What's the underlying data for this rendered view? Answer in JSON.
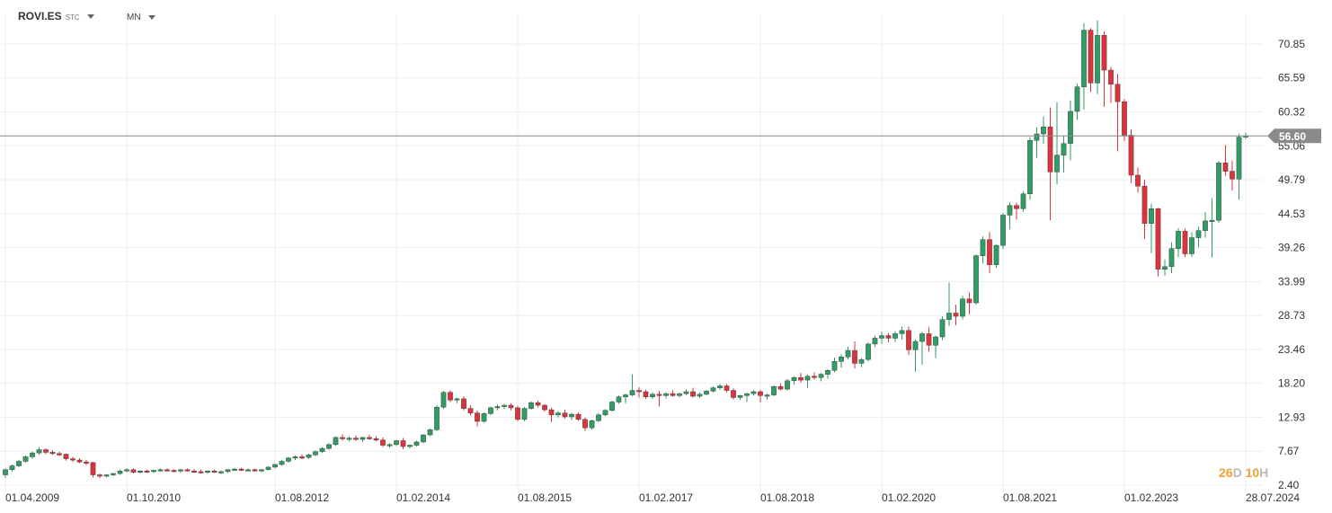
{
  "toolbar": {
    "symbol": "ROVI.ES",
    "symbol_tag": "STC",
    "timeframe": "MN",
    "symbol_dropdown_icon": "caret-down-icon",
    "timeframe_dropdown_icon": "caret-down-icon"
  },
  "countdown": {
    "days": "26",
    "days_unit": "D",
    "hours": "10",
    "hours_unit": "H"
  },
  "chart_data": {
    "type": "candlestick",
    "y_ticks": [
      "70.85",
      "65.59",
      "60.32",
      "55.06",
      "49.79",
      "44.53",
      "39.26",
      "33.99",
      "28.73",
      "23.46",
      "18.20",
      "12.93",
      "7.67",
      "2.40"
    ],
    "y_tick_values": [
      70.85,
      65.59,
      60.32,
      55.06,
      49.79,
      44.53,
      39.26,
      33.99,
      28.73,
      23.46,
      18.2,
      12.93,
      7.67,
      2.4
    ],
    "x_ticks": [
      "01.04.2009",
      "01.10.2010",
      "01.08.2012",
      "01.02.2014",
      "01.08.2015",
      "01.02.2017",
      "01.08.2018",
      "01.02.2020",
      "01.08.2021",
      "01.02.2023",
      "28.07.2024"
    ],
    "x_tick_month_index": [
      0,
      18,
      40,
      58,
      76,
      94,
      112,
      130,
      148,
      166,
      184
    ],
    "ylim": [
      2.4,
      74.5
    ],
    "grid": true,
    "current_price": 56.6,
    "current_price_label": "56.60",
    "colors": {
      "up": "#2e9e62",
      "down": "#e0323a",
      "price_line": "#888888",
      "price_label_bg": "#8a8a8a",
      "grid": "#eeeeee"
    },
    "candles": [
      [
        4.0,
        5.0,
        3.5,
        4.8
      ],
      [
        4.8,
        5.6,
        4.5,
        5.4
      ],
      [
        5.4,
        6.3,
        5.2,
        6.1
      ],
      [
        6.1,
        7.0,
        5.9,
        6.8
      ],
      [
        6.8,
        7.6,
        6.5,
        7.4
      ],
      [
        7.4,
        8.3,
        7.1,
        7.9
      ],
      [
        7.9,
        8.1,
        7.2,
        7.5
      ],
      [
        7.5,
        7.8,
        7.1,
        7.3
      ],
      [
        7.3,
        7.6,
        6.9,
        7.2
      ],
      [
        7.2,
        7.3,
        6.2,
        6.5
      ],
      [
        6.5,
        6.8,
        6.0,
        6.3
      ],
      [
        6.3,
        6.6,
        5.8,
        6.0
      ],
      [
        6.0,
        6.3,
        5.5,
        5.9
      ],
      [
        5.9,
        6.0,
        3.6,
        4.0
      ],
      [
        4.0,
        4.2,
        3.5,
        3.8
      ],
      [
        3.8,
        4.1,
        3.6,
        4.0
      ],
      [
        4.0,
        4.3,
        3.8,
        4.2
      ],
      [
        4.2,
        4.8,
        4.0,
        4.6
      ],
      [
        4.6,
        5.0,
        4.4,
        4.8
      ],
      [
        4.8,
        5.0,
        4.2,
        4.4
      ],
      [
        4.4,
        4.7,
        4.2,
        4.6
      ],
      [
        4.6,
        4.8,
        4.3,
        4.5
      ],
      [
        4.5,
        4.8,
        4.3,
        4.7
      ],
      [
        4.7,
        5.0,
        4.5,
        4.8
      ],
      [
        4.8,
        5.0,
        4.5,
        4.7
      ],
      [
        4.7,
        4.9,
        4.4,
        4.6
      ],
      [
        4.6,
        4.9,
        4.3,
        4.8
      ],
      [
        4.8,
        5.0,
        4.5,
        4.6
      ],
      [
        4.6,
        4.9,
        4.3,
        4.5
      ],
      [
        4.5,
        4.8,
        4.2,
        4.4
      ],
      [
        4.4,
        4.7,
        4.2,
        4.6
      ],
      [
        4.6,
        4.8,
        4.3,
        4.4
      ],
      [
        4.4,
        4.7,
        4.1,
        4.5
      ],
      [
        4.5,
        4.9,
        4.3,
        4.8
      ],
      [
        4.8,
        5.1,
        4.6,
        4.9
      ],
      [
        4.9,
        5.1,
        4.6,
        4.7
      ],
      [
        4.7,
        5.0,
        4.5,
        4.8
      ],
      [
        4.8,
        5.0,
        4.5,
        4.6
      ],
      [
        4.6,
        4.9,
        4.4,
        4.8
      ],
      [
        4.8,
        5.3,
        4.7,
        5.2
      ],
      [
        5.2,
        5.8,
        5.0,
        5.6
      ],
      [
        5.6,
        6.3,
        5.4,
        6.1
      ],
      [
        6.1,
        6.8,
        5.9,
        6.6
      ],
      [
        6.6,
        7.0,
        6.3,
        6.8
      ],
      [
        6.8,
        7.2,
        6.4,
        6.7
      ],
      [
        6.7,
        7.3,
        6.5,
        7.1
      ],
      [
        7.1,
        7.8,
        6.9,
        7.6
      ],
      [
        7.6,
        8.3,
        7.4,
        8.1
      ],
      [
        8.1,
        8.9,
        7.9,
        8.7
      ],
      [
        8.7,
        10.0,
        8.5,
        9.8
      ],
      [
        9.8,
        10.3,
        9.3,
        9.6
      ],
      [
        9.6,
        10.0,
        9.2,
        9.7
      ],
      [
        9.7,
        10.1,
        9.3,
        9.5
      ],
      [
        9.5,
        9.9,
        9.1,
        9.8
      ],
      [
        9.8,
        10.2,
        9.4,
        9.6
      ],
      [
        9.6,
        10.0,
        9.2,
        9.4
      ],
      [
        9.4,
        9.8,
        8.3,
        8.6
      ],
      [
        8.6,
        8.9,
        8.2,
        8.7
      ],
      [
        8.7,
        9.4,
        8.5,
        9.3
      ],
      [
        9.3,
        9.7,
        8.0,
        8.4
      ],
      [
        8.4,
        8.7,
        8.1,
        8.6
      ],
      [
        8.6,
        9.3,
        8.4,
        9.1
      ],
      [
        9.1,
        10.3,
        8.9,
        10.2
      ],
      [
        10.2,
        11.2,
        10.0,
        11.0
      ],
      [
        11.0,
        14.8,
        10.8,
        14.5
      ],
      [
        14.5,
        17.0,
        14.2,
        16.8
      ],
      [
        16.8,
        17.1,
        15.3,
        15.6
      ],
      [
        15.6,
        16.0,
        15.1,
        15.8
      ],
      [
        15.8,
        16.2,
        14.0,
        14.3
      ],
      [
        14.3,
        14.8,
        13.2,
        13.6
      ],
      [
        13.6,
        14.0,
        11.5,
        12.3
      ],
      [
        12.3,
        13.7,
        12.1,
        13.5
      ],
      [
        13.5,
        14.6,
        13.3,
        14.4
      ],
      [
        14.4,
        14.9,
        14.0,
        14.6
      ],
      [
        14.6,
        15.0,
        14.2,
        14.8
      ],
      [
        14.8,
        15.1,
        14.0,
        14.4
      ],
      [
        14.4,
        14.7,
        12.3,
        12.6
      ],
      [
        12.6,
        14.5,
        12.3,
        14.3
      ],
      [
        14.3,
        15.4,
        14.1,
        15.2
      ],
      [
        15.2,
        15.5,
        14.5,
        14.8
      ],
      [
        14.8,
        15.0,
        13.8,
        14.1
      ],
      [
        14.1,
        14.4,
        12.2,
        13.3
      ],
      [
        13.3,
        13.9,
        12.9,
        13.6
      ],
      [
        13.6,
        14.1,
        12.7,
        13.0
      ],
      [
        13.0,
        13.6,
        12.5,
        13.4
      ],
      [
        13.4,
        13.7,
        12.4,
        12.6
      ],
      [
        12.6,
        12.9,
        10.8,
        11.3
      ],
      [
        11.3,
        12.6,
        11.0,
        12.4
      ],
      [
        12.4,
        13.6,
        12.2,
        13.3
      ],
      [
        13.3,
        14.2,
        13.1,
        14.0
      ],
      [
        14.0,
        15.5,
        13.8,
        15.3
      ],
      [
        15.3,
        16.3,
        15.0,
        16.1
      ],
      [
        16.1,
        16.6,
        15.1,
        16.4
      ],
      [
        16.4,
        19.6,
        16.2,
        17.1
      ],
      [
        17.1,
        17.6,
        16.0,
        16.9
      ],
      [
        16.9,
        17.2,
        15.8,
        16.1
      ],
      [
        16.1,
        16.8,
        15.8,
        16.5
      ],
      [
        16.5,
        17.0,
        14.6,
        16.3
      ],
      [
        16.3,
        16.8,
        15.8,
        16.6
      ],
      [
        16.6,
        17.1,
        16.1,
        16.3
      ],
      [
        16.3,
        16.7,
        16.0,
        16.6
      ],
      [
        16.6,
        17.3,
        16.4,
        16.9
      ],
      [
        16.9,
        17.5,
        16.0,
        16.2
      ],
      [
        16.2,
        16.8,
        15.9,
        16.5
      ],
      [
        16.5,
        17.2,
        16.3,
        17.0
      ],
      [
        17.0,
        17.7,
        16.8,
        17.5
      ],
      [
        17.5,
        18.1,
        17.2,
        17.8
      ],
      [
        17.8,
        18.1,
        16.8,
        17.1
      ],
      [
        17.1,
        17.4,
        15.7,
        16.0
      ],
      [
        16.0,
        16.4,
        15.6,
        16.3
      ],
      [
        16.3,
        16.7,
        15.3,
        16.6
      ],
      [
        16.6,
        17.1,
        16.3,
        16.9
      ],
      [
        16.9,
        17.2,
        15.2,
        16.3
      ],
      [
        16.3,
        16.6,
        15.7,
        16.4
      ],
      [
        16.4,
        17.9,
        16.2,
        17.7
      ],
      [
        17.7,
        18.2,
        17.1,
        17.3
      ],
      [
        17.3,
        18.9,
        17.1,
        18.6
      ],
      [
        18.6,
        19.3,
        18.0,
        19.1
      ],
      [
        19.1,
        19.8,
        18.3,
        18.7
      ],
      [
        18.7,
        19.6,
        17.5,
        19.3
      ],
      [
        19.3,
        19.9,
        18.8,
        19.1
      ],
      [
        19.1,
        19.8,
        18.5,
        19.6
      ],
      [
        19.6,
        20.4,
        18.9,
        20.2
      ],
      [
        20.2,
        22.2,
        19.9,
        21.6
      ],
      [
        21.6,
        22.7,
        20.6,
        22.3
      ],
      [
        22.3,
        23.9,
        21.9,
        23.3
      ],
      [
        23.3,
        24.7,
        20.5,
        21.3
      ],
      [
        21.3,
        22.1,
        20.7,
        21.9
      ],
      [
        21.9,
        24.5,
        21.6,
        24.3
      ],
      [
        24.3,
        25.6,
        23.8,
        25.2
      ],
      [
        25.2,
        26.2,
        24.3,
        25.6
      ],
      [
        25.6,
        26.0,
        24.6,
        25.2
      ],
      [
        25.2,
        26.3,
        24.6,
        25.9
      ],
      [
        25.9,
        27.0,
        25.0,
        26.4
      ],
      [
        26.4,
        27.0,
        22.6,
        23.4
      ],
      [
        23.4,
        25.0,
        20.0,
        24.7
      ],
      [
        24.7,
        26.2,
        21.1,
        25.9
      ],
      [
        25.9,
        26.9,
        23.1,
        24.1
      ],
      [
        24.1,
        25.6,
        22.1,
        25.4
      ],
      [
        25.4,
        28.6,
        24.9,
        28.1
      ],
      [
        28.1,
        33.8,
        27.1,
        29.1
      ],
      [
        29.1,
        30.4,
        27.2,
        28.6
      ],
      [
        28.6,
        31.8,
        28.1,
        31.3
      ],
      [
        31.3,
        32.3,
        28.9,
        30.7
      ],
      [
        30.7,
        38.2,
        30.4,
        38.0
      ],
      [
        38.0,
        41.0,
        36.8,
        40.5
      ],
      [
        40.5,
        41.7,
        35.3,
        36.6
      ],
      [
        36.6,
        39.8,
        36.1,
        39.6
      ],
      [
        39.6,
        44.6,
        39.0,
        44.3
      ],
      [
        44.3,
        46.3,
        42.1,
        45.8
      ],
      [
        45.8,
        46.2,
        43.6,
        45.3
      ],
      [
        45.3,
        48.0,
        44.8,
        47.6
      ],
      [
        47.6,
        56.4,
        46.7,
        55.9
      ],
      [
        55.9,
        57.9,
        53.2,
        56.9
      ],
      [
        56.9,
        59.6,
        55.4,
        58.0
      ],
      [
        58.0,
        61.0,
        43.5,
        51.0
      ],
      [
        51.0,
        61.8,
        49.1,
        53.6
      ],
      [
        53.6,
        56.6,
        50.9,
        55.4
      ],
      [
        55.4,
        62.1,
        52.8,
        60.4
      ],
      [
        60.4,
        64.7,
        59.1,
        64.2
      ],
      [
        64.2,
        74.1,
        60.7,
        73.0
      ],
      [
        73.0,
        73.3,
        63.4,
        64.8
      ],
      [
        64.8,
        74.5,
        63.1,
        72.2
      ],
      [
        72.2,
        72.8,
        61.1,
        66.8
      ],
      [
        66.8,
        67.3,
        61.7,
        64.6
      ],
      [
        64.6,
        66.2,
        54.2,
        61.9
      ],
      [
        61.9,
        62.3,
        55.8,
        56.7
      ],
      [
        56.7,
        57.6,
        49.3,
        50.5
      ],
      [
        50.5,
        51.7,
        47.8,
        48.8
      ],
      [
        48.8,
        49.8,
        40.6,
        43.0
      ],
      [
        43.0,
        46.1,
        38.4,
        45.3
      ],
      [
        45.3,
        45.4,
        34.8,
        35.9
      ],
      [
        35.9,
        37.4,
        34.9,
        36.3
      ],
      [
        36.3,
        40.1,
        35.3,
        39.1
      ],
      [
        39.1,
        42.3,
        37.8,
        41.8
      ],
      [
        41.8,
        42.2,
        37.8,
        38.3
      ],
      [
        38.3,
        41.6,
        37.8,
        40.8
      ],
      [
        40.8,
        42.5,
        39.3,
        41.9
      ],
      [
        41.9,
        44.8,
        40.8,
        43.4
      ],
      [
        43.4,
        46.9,
        37.7,
        43.5
      ],
      [
        43.5,
        52.7,
        43.1,
        52.4
      ],
      [
        52.4,
        55.2,
        50.4,
        51.1
      ],
      [
        51.1,
        52.8,
        48.1,
        49.9
      ],
      [
        49.9,
        56.9,
        46.7,
        56.4
      ],
      [
        56.4,
        57.1,
        56.1,
        56.6
      ]
    ]
  }
}
